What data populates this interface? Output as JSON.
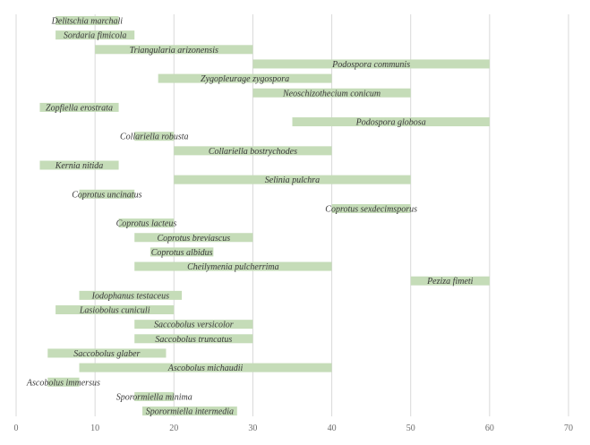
{
  "chart_data": {
    "type": "bar",
    "orientation": "horizontal",
    "title": "",
    "xlabel": "",
    "ylabel": "",
    "xlim": [
      0,
      70
    ],
    "x_ticks": [
      0,
      10,
      20,
      30,
      40,
      50,
      60,
      70
    ],
    "grid": "vertical",
    "bar_color": "#c5dcb8",
    "bars": [
      {
        "label": "Delitschia marchali",
        "start": 5,
        "end": 13
      },
      {
        "label": "Sordaria fimicola",
        "start": 5,
        "end": 15
      },
      {
        "label": "Triangularia arizonensis",
        "start": 10,
        "end": 30
      },
      {
        "label": "Podospora communis",
        "start": 30,
        "end": 60
      },
      {
        "label": "Zygopleurage zygospora",
        "start": 18,
        "end": 40
      },
      {
        "label": "Neoschizothecium conicum",
        "start": 30,
        "end": 50
      },
      {
        "label": "Zopfiella erostrata",
        "start": 3,
        "end": 13
      },
      {
        "label": "Podospora globosa",
        "start": 35,
        "end": 60
      },
      {
        "label": "Collariella robusta",
        "start": 15,
        "end": 20
      },
      {
        "label": "Collariella bostrychodes",
        "start": 20,
        "end": 40
      },
      {
        "label": "Kernia nitida",
        "start": 3,
        "end": 13
      },
      {
        "label": "Selinia pulchra",
        "start": 20,
        "end": 50
      },
      {
        "label": "Coprotus uncinatus",
        "start": 8,
        "end": 15
      },
      {
        "label": "Coprotus sexdecimsporus",
        "start": 40,
        "end": 50
      },
      {
        "label": "Coprotus lacteus",
        "start": 13,
        "end": 20
      },
      {
        "label": "Coprotus breviascus",
        "start": 15,
        "end": 30
      },
      {
        "label": "Coprotus albidus",
        "start": 17,
        "end": 25
      },
      {
        "label": "Cheilymenia pulcherrima",
        "start": 15,
        "end": 40
      },
      {
        "label": "Peziza fimeti",
        "start": 50,
        "end": 60
      },
      {
        "label": "Iodophanus testaceus",
        "start": 8,
        "end": 21
      },
      {
        "label": "Lasiobolus cuniculi",
        "start": 5,
        "end": 20
      },
      {
        "label": "Saccobolus versicolor",
        "start": 15,
        "end": 30
      },
      {
        "label": "Saccobolus truncatus",
        "start": 15,
        "end": 30
      },
      {
        "label": "Saccobolus glaber",
        "start": 4,
        "end": 19
      },
      {
        "label": "Ascobolus michaudii",
        "start": 8,
        "end": 40
      },
      {
        "label": "Ascobolus immersus",
        "start": 4,
        "end": 8
      },
      {
        "label": "Sporormiella minima",
        "start": 15,
        "end": 20
      },
      {
        "label": "Sporormiella intermedia",
        "start": 16,
        "end": 28
      }
    ]
  }
}
